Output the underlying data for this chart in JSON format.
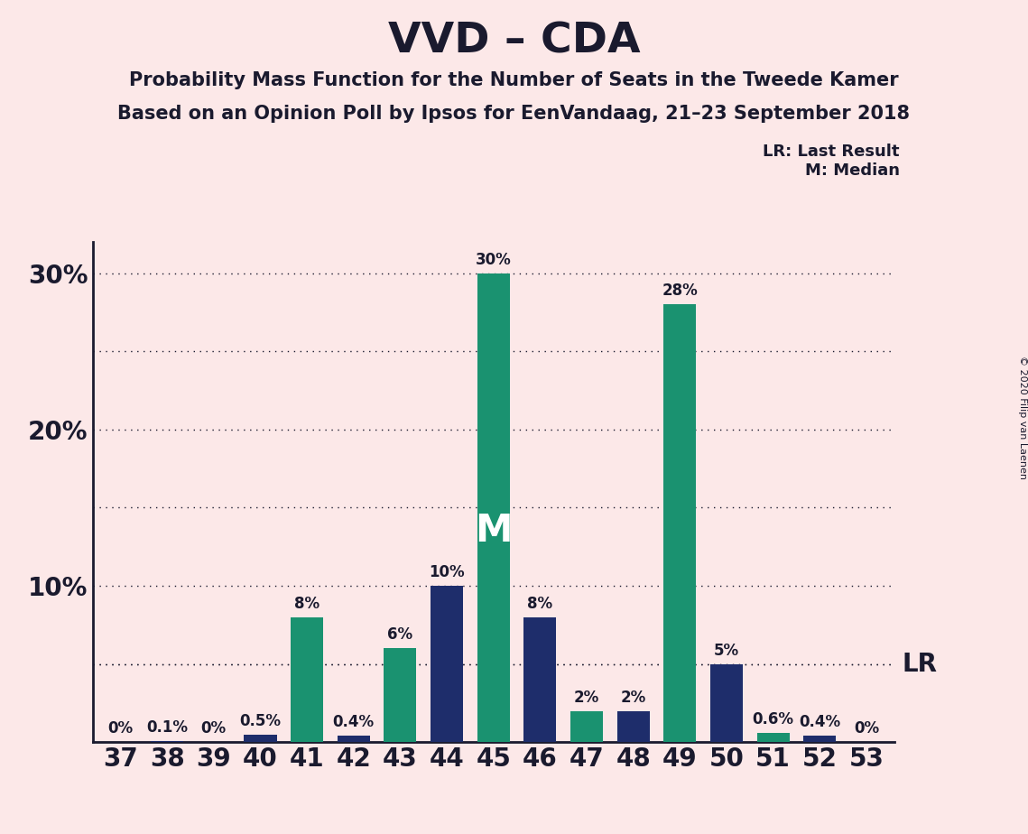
{
  "title": "VVD – CDA",
  "subtitle1": "Probability Mass Function for the Number of Seats in the Tweede Kamer",
  "subtitle2": "Based on an Opinion Poll by Ipsos for EenVandaag, 21–23 September 2018",
  "copyright": "© 2020 Filip van Laenen",
  "seats": [
    37,
    38,
    39,
    40,
    41,
    42,
    43,
    44,
    45,
    46,
    47,
    48,
    49,
    50,
    51,
    52,
    53
  ],
  "values": [
    0.0,
    0.1,
    0.0,
    0.5,
    8.0,
    0.4,
    6.0,
    10.0,
    30.0,
    8.0,
    2.0,
    2.0,
    28.0,
    5.0,
    0.6,
    0.4,
    0.0
  ],
  "labels": [
    "0%",
    "0.1%",
    "0%",
    "0.5%",
    "8%",
    "0.4%",
    "6%",
    "10%",
    "30%",
    "8%",
    "2%",
    "2%",
    "28%",
    "5%",
    "0.6%",
    "0.4%",
    "0%"
  ],
  "colors": [
    "#1a9270",
    "#1e2d6b",
    "#1a9270",
    "#1e2d6b",
    "#1a9270",
    "#1e2d6b",
    "#1a9270",
    "#1e2d6b",
    "#1a9270",
    "#1e2d6b",
    "#1a9270",
    "#1e2d6b",
    "#1a9270",
    "#1e2d6b",
    "#1a9270",
    "#1e2d6b",
    "#1a9270"
  ],
  "median_seat": 45,
  "lr_value": 5.0,
  "lr_label": "LR",
  "lr_legend": "LR: Last Result",
  "m_legend": "M: Median",
  "background_color": "#fce8e8",
  "ylim": [
    0,
    32
  ],
  "grid_values": [
    5,
    10,
    15,
    20,
    25,
    30
  ],
  "title_fontsize": 34,
  "subtitle_fontsize": 15,
  "label_fontsize": 12,
  "tick_fontsize": 20
}
